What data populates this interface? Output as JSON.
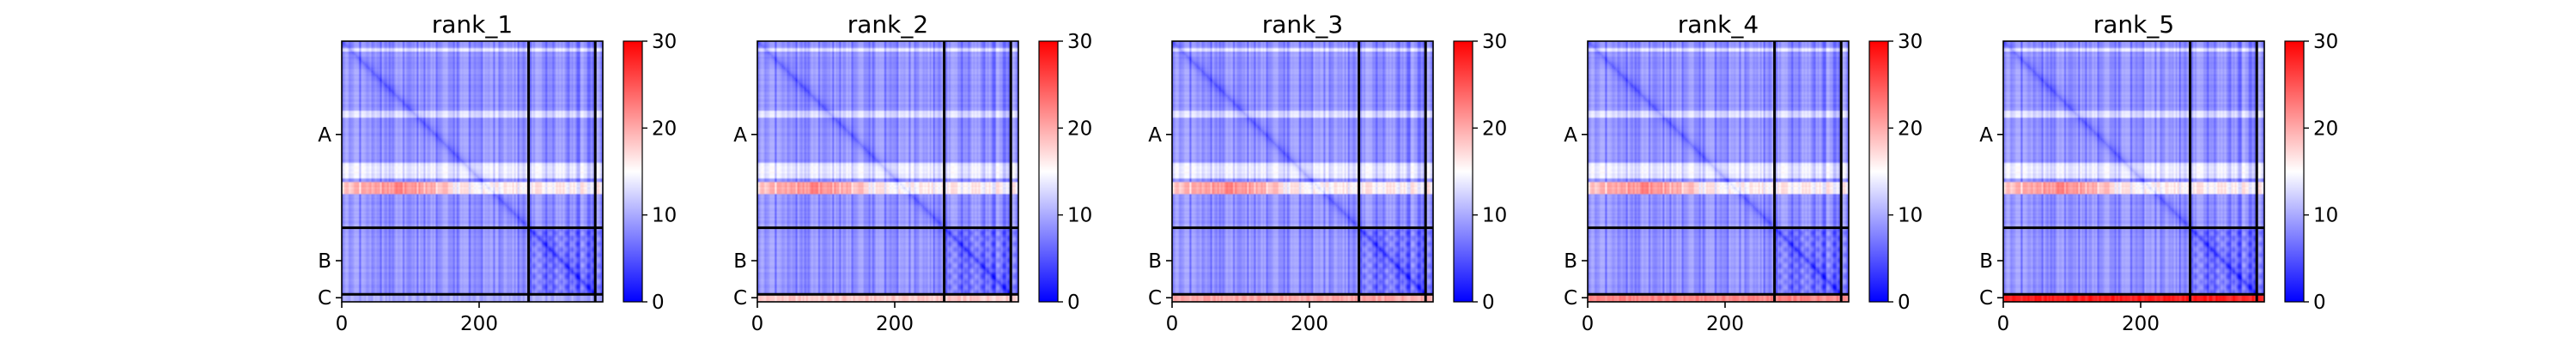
{
  "chart_data": {
    "type": "heatmap",
    "colormap": {
      "low": "#0000ff",
      "mid": "#ffffff",
      "high": "#ff0000"
    },
    "color_range": [
      0,
      30
    ],
    "colorbar_ticks": [
      "0",
      "10",
      "20",
      "30"
    ],
    "x_range": [
      0,
      380
    ],
    "x_ticks": [
      {
        "value": 0,
        "label": "0"
      },
      {
        "value": 200,
        "label": "200"
      }
    ],
    "chain_boundaries": [
      272,
      369
    ],
    "y_ticks": [
      {
        "value": 136,
        "label": "A"
      },
      {
        "value": 320,
        "label": "B"
      },
      {
        "value": 374,
        "label": "C"
      }
    ],
    "panels": [
      {
        "title": "rank_1",
        "chainC_row_value": 10
      },
      {
        "title": "rank_2",
        "chainC_row_value": 18
      },
      {
        "title": "rank_3",
        "chainC_row_value": 20
      },
      {
        "title": "rank_4",
        "chainC_row_value": 22
      },
      {
        "title": "rank_5",
        "chainC_row_value": 28
      }
    ],
    "grid": false
  }
}
